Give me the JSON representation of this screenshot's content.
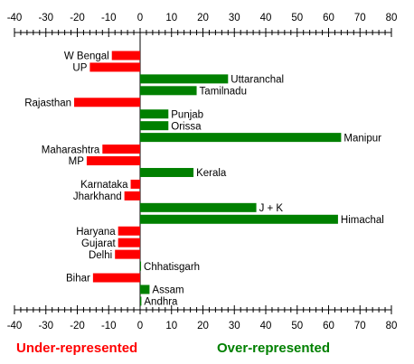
{
  "chart_data": {
    "type": "bar",
    "orientation": "horizontal",
    "xlim": [
      -40,
      80
    ],
    "x_ticks": [
      "-40",
      "-30",
      "-20",
      "-10",
      "0",
      "10",
      "20",
      "30",
      "40",
      "50",
      "60",
      "70",
      "80"
    ],
    "categories": [
      "W Bengal",
      "UP",
      "Uttaranchal",
      "Tamilnadu",
      "Rajasthan",
      "Punjab",
      "Orissa",
      "Manipur",
      "Maharashtra",
      "MP",
      "Kerala",
      "Karnataka",
      "Jharkhand",
      "J + K",
      "Himachal",
      "Haryana",
      "Gujarat",
      "Delhi",
      "Chhatisgarh",
      "Bihar",
      "Assam",
      "Andhra"
    ],
    "values": [
      -9,
      -16,
      28,
      18,
      -21,
      9,
      9,
      64,
      -12,
      -17,
      17,
      -3,
      -5,
      37,
      63,
      -7,
      -7,
      -8,
      0.3,
      -15,
      3,
      0.4
    ],
    "colors": {
      "negative": "#ff0000",
      "positive": "#008000"
    },
    "legend": {
      "under": {
        "text": "Under-represented",
        "color": "#ff0000"
      },
      "over": {
        "text": "Over-represented",
        "color": "#008000"
      }
    },
    "grid": false
  }
}
